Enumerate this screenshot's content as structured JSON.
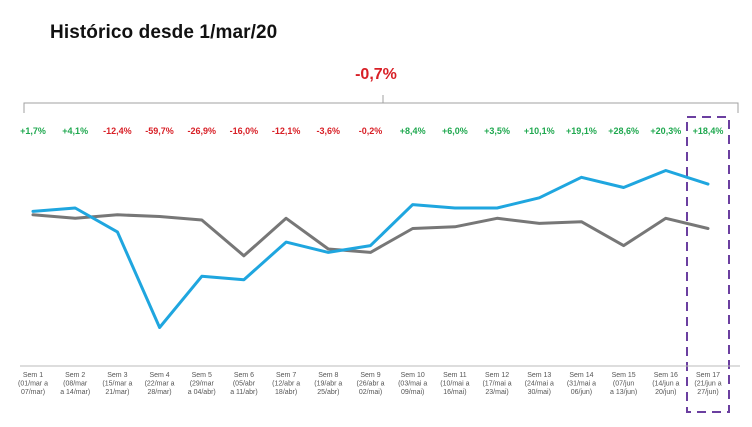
{
  "header": {
    "title": "Histórico desde 1/mar/20"
  },
  "summary": {
    "value": "-0,7%"
  },
  "colors": {
    "positive": "#1fa84f",
    "negative": "#d81f26",
    "blue_line": "#1fa6df",
    "gray_line": "#777777",
    "highlight": "#6b3fa0",
    "bracket": "#a0a0a0"
  },
  "chart_data": {
    "type": "line",
    "title": "Histórico desde 1/mar/20",
    "categories": [
      [
        "Sem 1",
        "(01/mar a",
        "07/mar)"
      ],
      [
        "Sem 2",
        "(08/mar",
        "a 14/mar)"
      ],
      [
        "Sem 3",
        "(15/mar a",
        "21/mar)"
      ],
      [
        "Sem 4",
        "(22/mar a",
        "28/mar)"
      ],
      [
        "Sem 5",
        "(29/mar",
        "a 04/abr)"
      ],
      [
        "Sem 6",
        "(05/abr",
        "a 11/abr)"
      ],
      [
        "Sem 7",
        "(12/abr a",
        "18/abr)"
      ],
      [
        "Sem 8",
        "(19/abr a",
        "25/abr)"
      ],
      [
        "Sem 9",
        "(26/abr a",
        "02/mai)"
      ],
      [
        "Sem 10",
        "(03/mai a",
        "09/mai)"
      ],
      [
        "Sem 11",
        "(10/mai a",
        "16/mai)"
      ],
      [
        "Sem 12",
        "(17/mai a",
        "23/mai)"
      ],
      [
        "Sem 13",
        "(24/mai a",
        "30/mai)"
      ],
      [
        "Sem 14",
        "(31/mai a",
        "06/jun)"
      ],
      [
        "Sem 15",
        "(07/jun",
        "a 13/jun)"
      ],
      [
        "Sem 16",
        "(14/jun a",
        "20/jun)"
      ],
      [
        "Sem 17",
        "(21/jun a",
        "27/jun)"
      ]
    ],
    "variation_labels": [
      "+1,7%",
      "+4,1%",
      "-12,4%",
      "-59,7%",
      "-26,9%",
      "-16,0%",
      "-12,1%",
      "-3,6%",
      "-0,2%",
      "+8,4%",
      "+6,0%",
      "+3,5%",
      "+10,1%",
      "+19,1%",
      "+28,6%",
      "+20,3%",
      "+18,4%"
    ],
    "total_variation": "-0,7%",
    "series": [
      {
        "values": [
          100,
          101,
          94,
          66,
          81,
          80,
          91,
          88,
          90,
          102,
          101,
          101,
          104,
          110,
          107,
          112,
          108
        ]
      },
      {
        "values": [
          99,
          98,
          99,
          98.5,
          97.5,
          87,
          98,
          89,
          88,
          95,
          95.5,
          98,
          96.5,
          97,
          90,
          98,
          95
        ]
      }
    ],
    "ylim": [
      55,
      118
    ],
    "highlight_index": 16,
    "grid": false,
    "legend": "none"
  }
}
